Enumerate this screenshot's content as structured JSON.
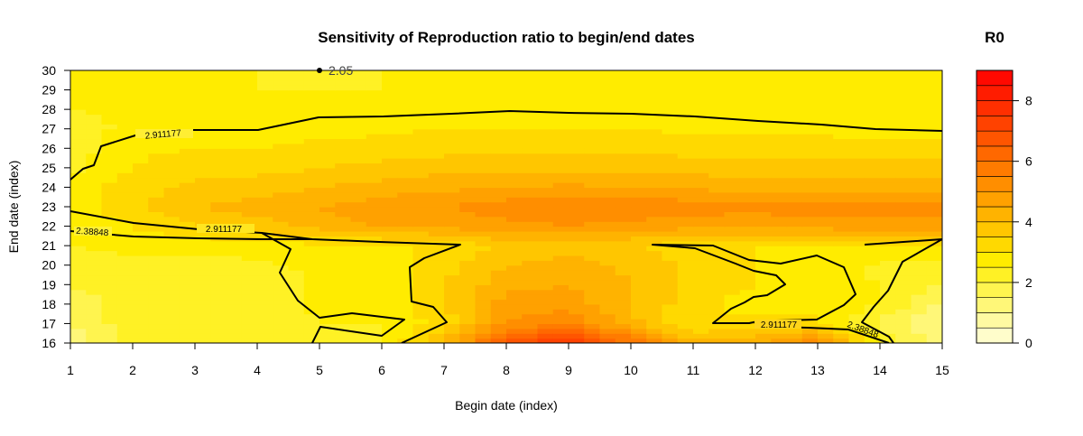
{
  "chart_data": {
    "type": "heatmap",
    "title": "Sensitivity of Reproduction ratio to begin/end dates",
    "xlabel": "Begin date (index)",
    "ylabel": "End date (index)",
    "x_ticks": [
      "1",
      "2",
      "3",
      "4",
      "5",
      "6",
      "7",
      "8",
      "9",
      "10",
      "11",
      "12",
      "13",
      "14",
      "15"
    ],
    "y_ticks": [
      "16",
      "17",
      "18",
      "19",
      "20",
      "21",
      "22",
      "23",
      "24",
      "25",
      "26",
      "27",
      "28",
      "29",
      "30"
    ],
    "xlim": [
      1,
      15
    ],
    "ylim": [
      16,
      30
    ],
    "colorbar": {
      "title": "R0",
      "ticks": [
        "0",
        "2",
        "4",
        "6",
        "8"
      ],
      "range": [
        0,
        9
      ],
      "levels": 18,
      "low_color": "#FFFFE0",
      "mid_color": "#FFEE00",
      "high_color": "#FF0000"
    },
    "contours": [
      {
        "label": "2.911177",
        "level": 2.911177
      },
      {
        "label": "2.38848",
        "level": 2.38848
      },
      {
        "label": "2.05",
        "level": 2.05
      }
    ],
    "r0_grid": {
      "x": [
        1,
        2,
        3,
        4,
        5,
        6,
        7,
        8,
        9,
        10,
        11,
        12,
        13,
        14,
        15
      ],
      "y": [
        16,
        17,
        18,
        19,
        20,
        21,
        22,
        23,
        24,
        25,
        26,
        27,
        28,
        29,
        30
      ],
      "z": [
        [
          1.2,
          2.2,
          2.2,
          2.2,
          2.3,
          2.5,
          4.0,
          7.0,
          7.5,
          6.0,
          4.2,
          4.5,
          5.5,
          2.5,
          1.2
        ],
        [
          1.5,
          2.3,
          2.3,
          2.1,
          2.5,
          2.5,
          3.2,
          5.0,
          5.5,
          4.2,
          3.0,
          3.2,
          3.2,
          1.8,
          1.0
        ],
        [
          1.6,
          2.3,
          2.3,
          2.2,
          2.6,
          2.7,
          3.4,
          4.8,
          4.8,
          4.0,
          3.2,
          2.7,
          2.8,
          2.5,
          1.4
        ],
        [
          2.1,
          2.3,
          2.3,
          2.2,
          2.6,
          2.7,
          3.5,
          4.3,
          4.5,
          4.0,
          3.3,
          3.0,
          2.6,
          2.5,
          2.0
        ],
        [
          2.2,
          2.4,
          2.4,
          2.4,
          2.6,
          2.8,
          3.3,
          4.0,
          4.3,
          3.9,
          3.4,
          3.0,
          2.9,
          2.4,
          2.3
        ],
        [
          2.5,
          2.6,
          2.6,
          2.7,
          2.9,
          2.9,
          3.1,
          3.6,
          3.7,
          3.5,
          3.2,
          3.0,
          3.0,
          3.0,
          3.0
        ],
        [
          2.6,
          3.0,
          3.5,
          3.8,
          4.2,
          4.5,
          4.6,
          4.8,
          5.0,
          4.8,
          4.6,
          4.6,
          4.7,
          4.8,
          4.8
        ],
        [
          2.8,
          3.3,
          4.0,
          4.2,
          4.5,
          4.8,
          5.0,
          5.3,
          5.4,
          5.4,
          5.3,
          5.2,
          5.3,
          5.3,
          5.3
        ],
        [
          2.8,
          3.3,
          3.6,
          3.8,
          4.0,
          4.2,
          4.4,
          4.5,
          4.6,
          4.5,
          4.4,
          4.3,
          4.3,
          4.3,
          4.3
        ],
        [
          2.3,
          3.0,
          3.3,
          3.3,
          3.5,
          3.7,
          3.8,
          3.9,
          3.9,
          3.8,
          3.8,
          3.7,
          3.7,
          3.7,
          3.7
        ],
        [
          2.2,
          2.9,
          3.0,
          3.0,
          3.1,
          3.2,
          3.3,
          3.4,
          3.4,
          3.4,
          3.3,
          3.3,
          3.2,
          3.2,
          3.2
        ],
        [
          2.3,
          2.6,
          2.8,
          2.8,
          2.9,
          2.9,
          3.0,
          3.0,
          3.0,
          3.0,
          2.9,
          2.9,
          2.9,
          2.8,
          2.8
        ],
        [
          2.5,
          2.6,
          2.6,
          2.6,
          2.6,
          2.6,
          2.6,
          2.7,
          2.7,
          2.7,
          2.7,
          2.7,
          2.7,
          2.7,
          2.7
        ],
        [
          2.5,
          2.5,
          2.5,
          2.5,
          2.5,
          2.5,
          2.6,
          2.6,
          2.6,
          2.6,
          2.6,
          2.6,
          2.6,
          2.6,
          2.6
        ],
        [
          2.5,
          2.5,
          2.5,
          2.5,
          2.2,
          2.5,
          2.5,
          2.5,
          2.5,
          2.5,
          2.5,
          2.5,
          2.5,
          2.5,
          2.5
        ]
      ]
    }
  }
}
